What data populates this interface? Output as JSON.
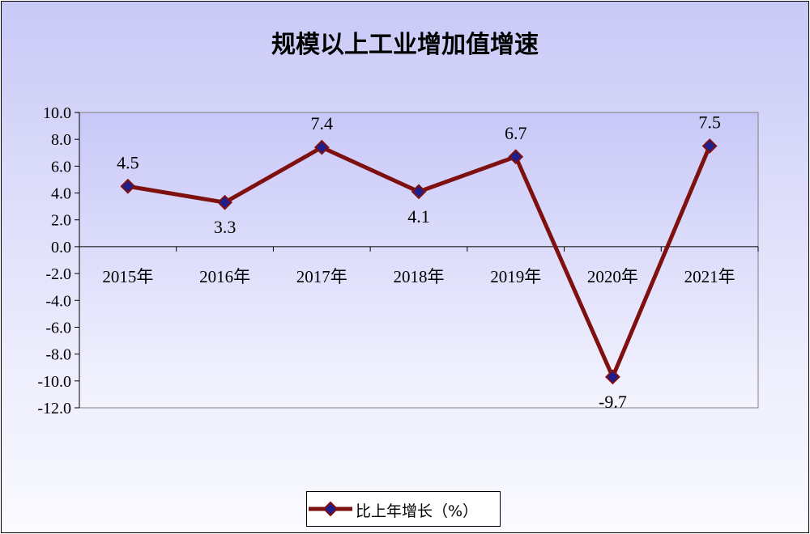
{
  "chart_data": {
    "type": "line",
    "title": "规模以上工业增加值增速",
    "categories": [
      "2015年",
      "2016年",
      "2017年",
      "2018年",
      "2019年",
      "2020年",
      "2021年"
    ],
    "series": [
      {
        "name": "比上年增长（%）",
        "values": [
          4.5,
          3.3,
          7.4,
          4.1,
          6.7,
          -9.7,
          7.5
        ]
      }
    ],
    "data_labels": [
      "4.5",
      "3.3",
      "7.4",
      "4.1",
      "6.7",
      "-9.7",
      "7.5"
    ],
    "y_ticks": [
      "10.0",
      "8.0",
      "6.0",
      "4.0",
      "2.0",
      "0.0",
      "-2.0",
      "-4.0",
      "-6.0",
      "-8.0",
      "-10.0",
      "-12.0"
    ],
    "ylim": [
      -12,
      10
    ],
    "grid": false,
    "legend_position": "bottom",
    "colors": {
      "line": "#7f1010",
      "marker_fill": "#1e1e8c",
      "plot_top": "#c8c8f8",
      "plot_bottom": "#f4f4fe"
    }
  }
}
